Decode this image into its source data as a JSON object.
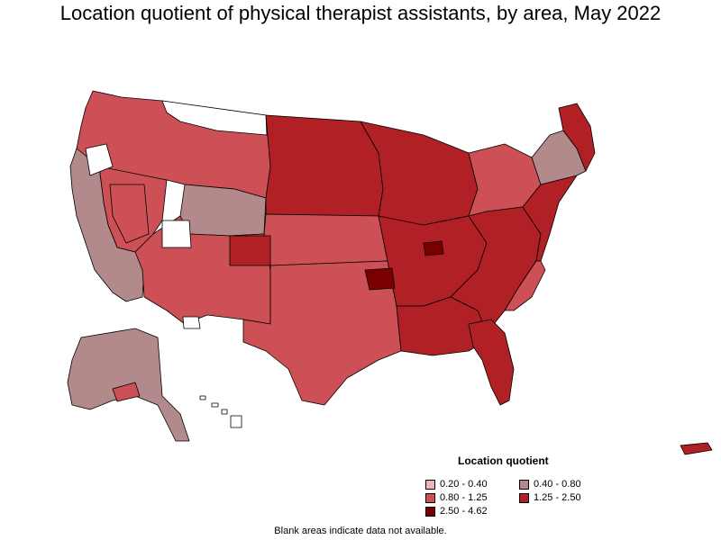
{
  "title": "Location quotient of physical therapist assistants, by area, May 2022",
  "legend": {
    "title": "Location quotient",
    "items": [
      {
        "label": "0.20 - 0.40",
        "color": "#f0b5bb"
      },
      {
        "label": "0.40 - 0.80",
        "color": "#b38a8c"
      },
      {
        "label": "0.80 - 1.25",
        "color": "#cc5055"
      },
      {
        "label": "1.25 - 2.50",
        "color": "#b02024"
      },
      {
        "label": "2.50 - 4.62",
        "color": "#7a0000"
      }
    ]
  },
  "note": "Blank areas indicate data not available.",
  "colors": {
    "blank": "#ffffff",
    "border": "#000000"
  }
}
